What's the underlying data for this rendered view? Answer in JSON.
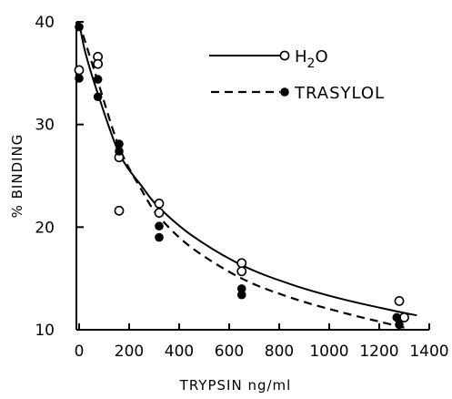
{
  "chart_data": {
    "type": "scatter",
    "title": "",
    "xlabel": "TRYPSIN ng/ml",
    "ylabel": "% BINDING",
    "xlim": [
      0,
      1400
    ],
    "ylim": [
      10,
      40
    ],
    "x_ticks": [
      0,
      200,
      400,
      600,
      800,
      1000,
      1200,
      1400
    ],
    "y_ticks": [
      10,
      20,
      30,
      40
    ],
    "legend_position": "top-right",
    "grid": false,
    "series": [
      {
        "name": "H2O",
        "marker": "open-circle",
        "line_style": "solid",
        "points": [
          {
            "x": 0,
            "y": 35.3
          },
          {
            "x": 75,
            "y": 36.6
          },
          {
            "x": 75,
            "y": 35.9
          },
          {
            "x": 160,
            "y": 26.8
          },
          {
            "x": 160,
            "y": 21.6
          },
          {
            "x": 320,
            "y": 22.3
          },
          {
            "x": 320,
            "y": 21.4
          },
          {
            "x": 650,
            "y": 16.5
          },
          {
            "x": 650,
            "y": 15.7
          },
          {
            "x": 1280,
            "y": 12.8
          },
          {
            "x": 1300,
            "y": 11.2
          }
        ],
        "fit_curve": [
          {
            "x": 0,
            "y": 40.0
          },
          {
            "x": 25,
            "y": 37.0
          },
          {
            "x": 75,
            "y": 33.0
          },
          {
            "x": 160,
            "y": 27.2
          },
          {
            "x": 250,
            "y": 24.0
          },
          {
            "x": 320,
            "y": 21.9
          },
          {
            "x": 450,
            "y": 19.2
          },
          {
            "x": 650,
            "y": 16.3
          },
          {
            "x": 850,
            "y": 14.4
          },
          {
            "x": 1050,
            "y": 13.0
          },
          {
            "x": 1250,
            "y": 11.9
          },
          {
            "x": 1350,
            "y": 11.4
          }
        ]
      },
      {
        "name": "TRASYLOL",
        "marker": "filled-circle",
        "line_style": "dashed",
        "points": [
          {
            "x": 0,
            "y": 39.5
          },
          {
            "x": 0,
            "y": 34.5
          },
          {
            "x": 75,
            "y": 34.4
          },
          {
            "x": 75,
            "y": 32.7
          },
          {
            "x": 160,
            "y": 28.1
          },
          {
            "x": 160,
            "y": 27.4
          },
          {
            "x": 320,
            "y": 20.1
          },
          {
            "x": 320,
            "y": 19.0
          },
          {
            "x": 650,
            "y": 14.0
          },
          {
            "x": 650,
            "y": 13.4
          },
          {
            "x": 1270,
            "y": 11.2
          },
          {
            "x": 1280,
            "y": 10.5
          }
        ],
        "fit_curve": [
          {
            "x": 0,
            "y": 40.0
          },
          {
            "x": 25,
            "y": 38.0
          },
          {
            "x": 75,
            "y": 34.2
          },
          {
            "x": 160,
            "y": 27.8
          },
          {
            "x": 250,
            "y": 23.6
          },
          {
            "x": 320,
            "y": 21.0
          },
          {
            "x": 450,
            "y": 18.0
          },
          {
            "x": 650,
            "y": 15.0
          },
          {
            "x": 850,
            "y": 13.1
          },
          {
            "x": 1050,
            "y": 11.7
          },
          {
            "x": 1200,
            "y": 10.8
          },
          {
            "x": 1300,
            "y": 10.2
          }
        ]
      }
    ]
  },
  "legend": {
    "items": [
      {
        "label_main": "H",
        "label_sub": "2",
        "label_tail": "O"
      },
      {
        "label_main": "TRASYLOL",
        "label_sub": "",
        "label_tail": ""
      }
    ]
  },
  "colors": {
    "ink": "#000000",
    "background": "#ffffff"
  }
}
